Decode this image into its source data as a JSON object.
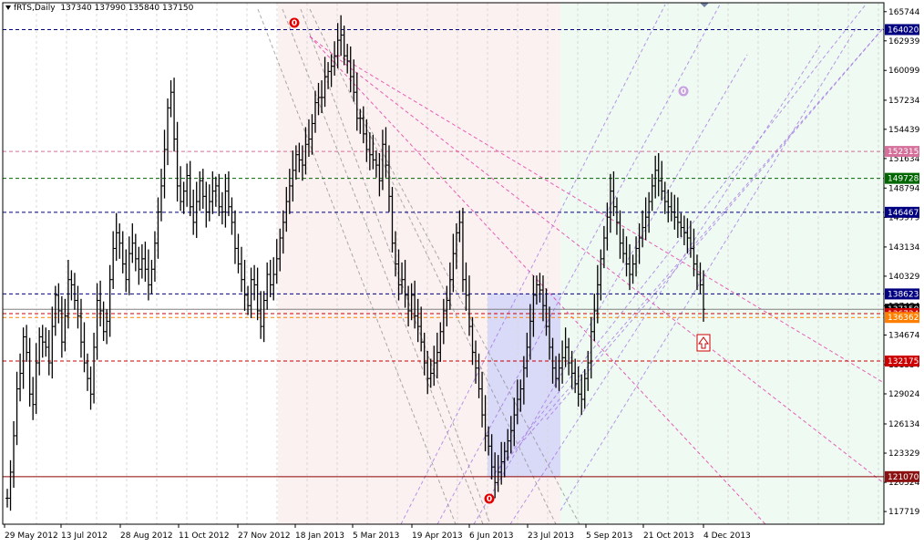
{
  "header": {
    "symbol": "fRTS,Daily",
    "ohlc": "137340 137990 135840 137150"
  },
  "colors": {
    "bull_bar": "#000000",
    "price_line": "#808080",
    "navy_level": "#000080",
    "red_level": "#cc0000",
    "green_level": "#006600",
    "pink_level": "#d4709a",
    "orange_level": "#ff8000",
    "magenta_lines": "#e0209a",
    "violet_lines": "#9d6be0",
    "gray_lines": "#888888"
  },
  "chart_data": {
    "type": "ohlc",
    "ylim": [
      116500,
      166600
    ],
    "y_ticks": [
      165744,
      162939,
      160099,
      157234,
      154439,
      151634,
      148794,
      145979,
      143134,
      140329,
      137484,
      134674,
      131834,
      129024,
      126134,
      123329,
      120524,
      117719
    ],
    "x_ticks": [
      "29 May 2012",
      "13 Jul 2012",
      "28 Aug 2012",
      "11 Oct 2012",
      "27 Nov 2012",
      "18 Jan 2013",
      "5 Mar 2013",
      "19 Apr 2013",
      "6 Jun 2013",
      "23 Jul 2013",
      "5 Sep 2013",
      "21 Oct 2013",
      "4 Dec 2013"
    ],
    "last_price": 137150,
    "levels": [
      {
        "value": 164020,
        "label": "164020",
        "color": "navy"
      },
      {
        "value": 152315,
        "label": "152315",
        "color": "pink"
      },
      {
        "value": 149728,
        "label": "149728",
        "color": "green"
      },
      {
        "value": 146467,
        "label": "146467",
        "color": "navy"
      },
      {
        "value": 138623,
        "label": "138623",
        "color": "navy"
      },
      {
        "value": 137150,
        "label": "137150",
        "color": "black"
      },
      {
        "value": 136734,
        "label": "136734",
        "color": "red"
      },
      {
        "value": 136362,
        "label": "136362",
        "color": "orange"
      },
      {
        "value": 132175,
        "label": "132175",
        "color": "red"
      },
      {
        "value": 121070,
        "label": "121070",
        "color": "darkred"
      }
    ],
    "swing_markers": [
      {
        "label": "0",
        "date": "Dec 2012",
        "price": 165000,
        "color": "red"
      },
      {
        "label": "0",
        "date": "6 Jun 2013",
        "price": 119800,
        "color": "red"
      },
      {
        "label": "0",
        "date": "Oct 2013",
        "price": 158000,
        "color": "violet"
      }
    ],
    "closes": [
      119000,
      121500,
      125000,
      129500,
      131000,
      134500,
      133000,
      129000,
      128000,
      132000,
      134500,
      134000,
      133500,
      132000,
      135500,
      138500,
      137000,
      134000,
      136500,
      140000,
      139500,
      138000,
      136500,
      134000,
      132000,
      130500,
      129000,
      133500,
      138000,
      137000,
      135000,
      136000,
      140000,
      143000,
      144500,
      143500,
      141500,
      140000,
      142500,
      143500,
      142000,
      141000,
      142000,
      141000,
      139500,
      141000,
      143500,
      146500,
      149000,
      152500,
      156500,
      158000,
      153500,
      149000,
      147500,
      148500,
      150000,
      147000,
      145500,
      147500,
      149500,
      148000,
      146500,
      147500,
      148500,
      149000,
      147000,
      146500,
      148500,
      147000,
      145500,
      143000,
      141500,
      140000,
      138500,
      137500,
      140000,
      139500,
      137000,
      135500,
      138000,
      140500,
      139500,
      140500,
      142000,
      144000,
      145500,
      147500,
      149000,
      150500,
      152000,
      151500,
      151000,
      153000,
      153500,
      155000,
      157000,
      157500,
      157500,
      159500,
      160000,
      160500,
      161500,
      163000,
      163500,
      161500,
      161000,
      159500,
      158000,
      155500,
      155500,
      154000,
      152500,
      152000,
      151500,
      151000,
      149500,
      153000,
      151000,
      148000,
      143500,
      141500,
      139500,
      140000,
      138500,
      137000,
      138500,
      136500,
      135500,
      134000,
      132000,
      130500,
      131000,
      132000,
      133000,
      135000,
      137000,
      138000,
      140000,
      142500,
      144500,
      145500,
      140000,
      138500,
      135500,
      133000,
      131500,
      129500,
      127000,
      125000,
      124000,
      122000,
      120500,
      121500,
      122500,
      123500,
      124500,
      125500,
      127000,
      128500,
      129500,
      131500,
      133500,
      136000,
      138500,
      139500,
      139000,
      137500,
      135500,
      133500,
      131500,
      130500,
      131500,
      132500,
      133500,
      132000,
      131000,
      130000,
      129000,
      128500,
      130500,
      132000,
      135000,
      137000,
      139500,
      142000,
      144000,
      146000,
      148500,
      147000,
      145500,
      143500,
      142500,
      141500,
      140500,
      141500,
      143000,
      144000,
      145000,
      146000,
      147500,
      149000,
      150500,
      149500,
      148500,
      147500,
      147000,
      146500,
      146000,
      145500,
      145000,
      144500,
      144000,
      143000,
      141500,
      140500,
      139500,
      137150
    ]
  }
}
